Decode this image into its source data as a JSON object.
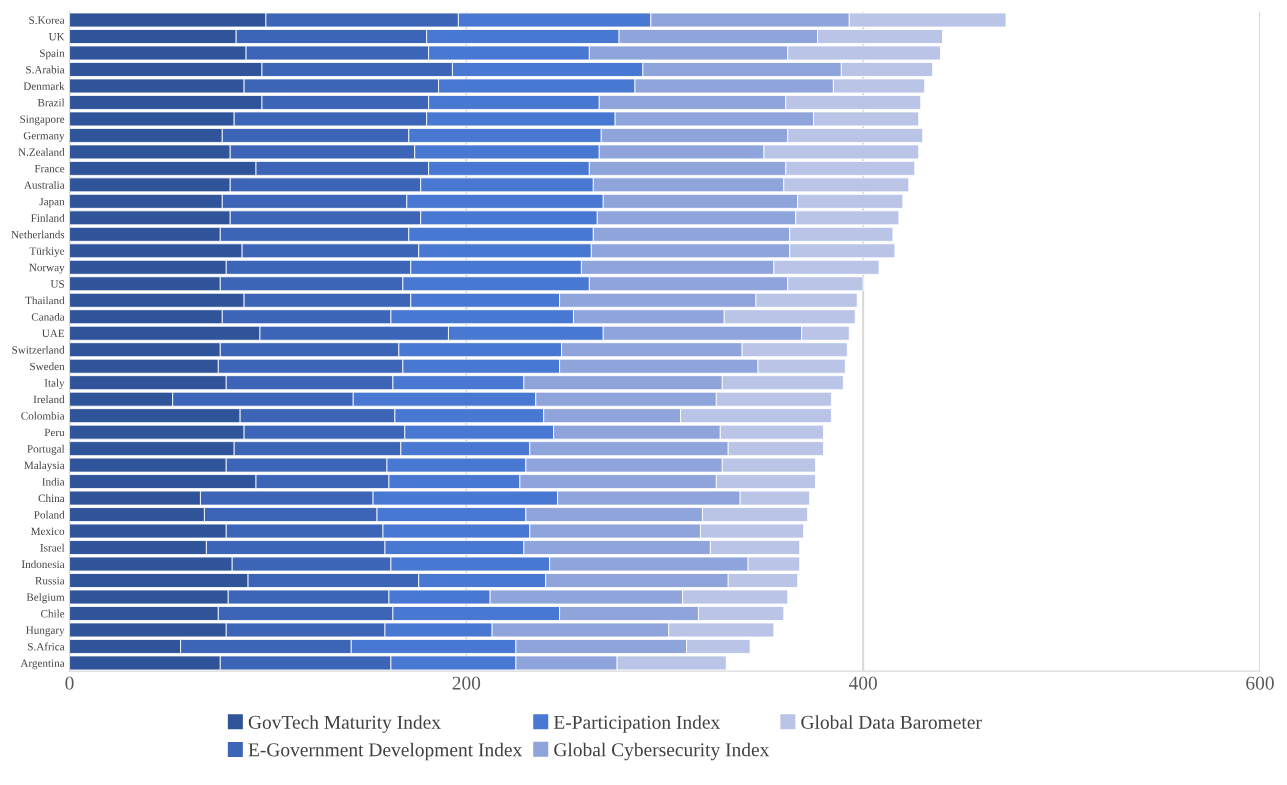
{
  "chart_data": {
    "type": "bar",
    "orientation": "horizontal",
    "stacked": true,
    "categories": [
      "S.Korea",
      "UK",
      "Spain",
      "S.Arabia",
      "Denmark",
      "Brazil",
      "Singapore",
      "Germany",
      "N.Zealand",
      "France",
      "Australia",
      "Japan",
      "Finland",
      "Netherlands",
      "Türkiye",
      "Norway",
      "US",
      "Thailand",
      "Canada",
      "UAE",
      "Switzerland",
      "Sweden",
      "Italy",
      "Ireland",
      "Colombia",
      "Peru",
      "Portugal",
      "Malaysia",
      "India",
      "China",
      "Poland",
      "Mexico",
      "Israel",
      "Indonesia",
      "Russia",
      "Belgium",
      "Chile",
      "Hungary",
      "S.Africa",
      "Argentina"
    ],
    "series": [
      {
        "name": "GovTech Maturity Index",
        "color": "#30549a",
        "values": [
          99,
          84,
          89,
          97,
          88,
          97,
          83,
          77,
          81,
          94,
          81,
          77,
          81,
          76,
          87,
          79,
          76,
          88,
          77,
          96,
          76,
          75,
          79,
          52,
          86,
          88,
          83,
          79,
          94,
          66,
          68,
          79,
          69,
          82,
          90,
          80,
          75,
          79,
          56,
          76
        ]
      },
      {
        "name": "E-Government Development Index",
        "color": "#3c65b8",
        "values": [
          97,
          96,
          92,
          96,
          98,
          84,
          97,
          94,
          93,
          87,
          96,
          93,
          96,
          95,
          89,
          93,
          92,
          84,
          85,
          95,
          90,
          93,
          84,
          91,
          78,
          81,
          84,
          81,
          67,
          87,
          87,
          79,
          90,
          80,
          86,
          81,
          88,
          80,
          86,
          86
        ]
      },
      {
        "name": "E-Participation Index",
        "color": "#4878d1",
        "values": [
          97,
          97,
          81,
          96,
          99,
          86,
          95,
          97,
          93,
          81,
          87,
          99,
          89,
          93,
          87,
          86,
          94,
          75,
          92,
          78,
          82,
          79,
          66,
          92,
          75,
          75,
          65,
          70,
          66,
          93,
          75,
          74,
          70,
          80,
          64,
          51,
          84,
          54,
          83,
          63
        ]
      },
      {
        "name": "Global Cybersecurity Index",
        "color": "#8fa4db",
        "values": [
          100,
          100,
          100,
          100,
          100,
          94,
          100,
          94,
          83,
          99,
          96,
          98,
          100,
          99,
          100,
          97,
          100,
          99,
          76,
          100,
          91,
          100,
          100,
          91,
          69,
          84,
          100,
          99,
          99,
          92,
          89,
          86,
          94,
          100,
          92,
          97,
          70,
          89,
          86,
          51
        ]
      },
      {
        "name": "Global Data Barometer",
        "color": "#bac4e6",
        "values": [
          79,
          63,
          77,
          46,
          46,
          68,
          53,
          68,
          78,
          65,
          63,
          53,
          52,
          52,
          53,
          53,
          38,
          51,
          66,
          24,
          53,
          44,
          61,
          58,
          76,
          52,
          48,
          47,
          50,
          35,
          53,
          52,
          45,
          26,
          35,
          53,
          43,
          53,
          32,
          55
        ]
      }
    ],
    "xlim": [
      0,
      600
    ],
    "xticks": [
      0,
      200,
      400,
      600
    ],
    "grid": "x",
    "legend": "bottom"
  }
}
